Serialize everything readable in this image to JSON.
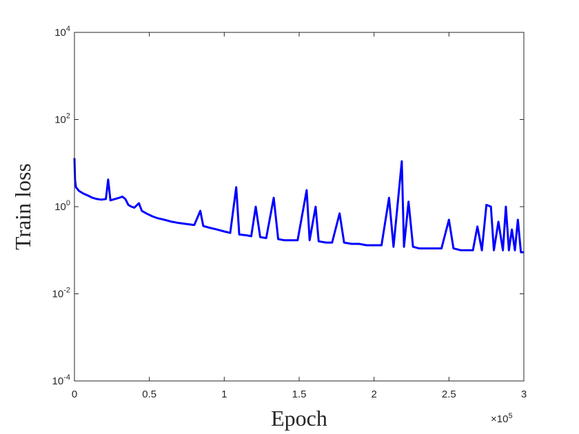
{
  "chart_data": {
    "type": "line",
    "xlabel": "Epoch",
    "ylabel": "Train loss",
    "x_multiplier": {
      "base": "×10",
      "exponent": "5"
    },
    "xlim": [
      0,
      300000
    ],
    "ylim": [
      0.0001,
      10000
    ],
    "y_scale": "log",
    "grid": false,
    "x_ticks": [
      {
        "value": 0,
        "label": "0"
      },
      {
        "value": 50000,
        "label": "0.5"
      },
      {
        "value": 100000,
        "label": "1"
      },
      {
        "value": 150000,
        "label": "1.5"
      },
      {
        "value": 200000,
        "label": "2"
      },
      {
        "value": 250000,
        "label": "2.5"
      },
      {
        "value": 300000,
        "label": "3"
      }
    ],
    "y_ticks": [
      {
        "value": 0.0001,
        "base": "10",
        "exp": "-4"
      },
      {
        "value": 0.01,
        "base": "10",
        "exp": "-2"
      },
      {
        "value": 1,
        "base": "10",
        "exp": "0"
      },
      {
        "value": 100,
        "base": "10",
        "exp": "2"
      },
      {
        "value": 10000,
        "base": "10",
        "exp": "4"
      }
    ],
    "series": [
      {
        "color": "#0000ff",
        "points": [
          [
            0,
            13
          ],
          [
            400,
            4
          ],
          [
            1000,
            2.8
          ],
          [
            3000,
            2.3
          ],
          [
            6000,
            2.0
          ],
          [
            9000,
            1.8
          ],
          [
            12000,
            1.6
          ],
          [
            15000,
            1.5
          ],
          [
            18000,
            1.45
          ],
          [
            21000,
            1.5
          ],
          [
            22500,
            4.2
          ],
          [
            24000,
            1.4
          ],
          [
            27000,
            1.5
          ],
          [
            30000,
            1.6
          ],
          [
            32000,
            1.7
          ],
          [
            34000,
            1.5
          ],
          [
            36000,
            1.1
          ],
          [
            38000,
            1.0
          ],
          [
            40000,
            0.95
          ],
          [
            43000,
            1.2
          ],
          [
            45000,
            0.8
          ],
          [
            48000,
            0.7
          ],
          [
            52000,
            0.6
          ],
          [
            55000,
            0.55
          ],
          [
            60000,
            0.5
          ],
          [
            65000,
            0.45
          ],
          [
            70000,
            0.42
          ],
          [
            75000,
            0.4
          ],
          [
            80000,
            0.38
          ],
          [
            84000,
            0.8
          ],
          [
            86000,
            0.36
          ],
          [
            90000,
            0.33
          ],
          [
            95000,
            0.3
          ],
          [
            100000,
            0.27
          ],
          [
            104000,
            0.25
          ],
          [
            108000,
            2.8
          ],
          [
            110000,
            0.23
          ],
          [
            115000,
            0.22
          ],
          [
            118000,
            0.21
          ],
          [
            121000,
            1.0
          ],
          [
            124000,
            0.2
          ],
          [
            128000,
            0.19
          ],
          [
            133000,
            1.6
          ],
          [
            136000,
            0.18
          ],
          [
            140000,
            0.17
          ],
          [
            145000,
            0.17
          ],
          [
            149000,
            0.17
          ],
          [
            155000,
            2.4
          ],
          [
            157000,
            0.17
          ],
          [
            161000,
            1.0
          ],
          [
            163000,
            0.16
          ],
          [
            168000,
            0.15
          ],
          [
            172000,
            0.15
          ],
          [
            177000,
            0.7
          ],
          [
            180000,
            0.15
          ],
          [
            185000,
            0.14
          ],
          [
            190000,
            0.14
          ],
          [
            195000,
            0.13
          ],
          [
            200000,
            0.13
          ],
          [
            205000,
            0.13
          ],
          [
            210000,
            1.6
          ],
          [
            213000,
            0.12
          ],
          [
            218500,
            11
          ],
          [
            220000,
            0.12
          ],
          [
            223000,
            1.3
          ],
          [
            226000,
            0.12
          ],
          [
            230000,
            0.11
          ],
          [
            235000,
            0.11
          ],
          [
            240000,
            0.11
          ],
          [
            245000,
            0.11
          ],
          [
            250000,
            0.5
          ],
          [
            253000,
            0.11
          ],
          [
            258000,
            0.1
          ],
          [
            262000,
            0.1
          ],
          [
            266000,
            0.1
          ],
          [
            269000,
            0.35
          ],
          [
            272000,
            0.1
          ],
          [
            275000,
            1.1
          ],
          [
            278000,
            1.0
          ],
          [
            280000,
            0.1
          ],
          [
            283000,
            0.45
          ],
          [
            286000,
            0.1
          ],
          [
            288000,
            1.0
          ],
          [
            290000,
            0.1
          ],
          [
            292000,
            0.3
          ],
          [
            294000,
            0.1
          ],
          [
            296000,
            0.5
          ],
          [
            298000,
            0.09
          ],
          [
            300000,
            0.09
          ]
        ]
      }
    ]
  }
}
